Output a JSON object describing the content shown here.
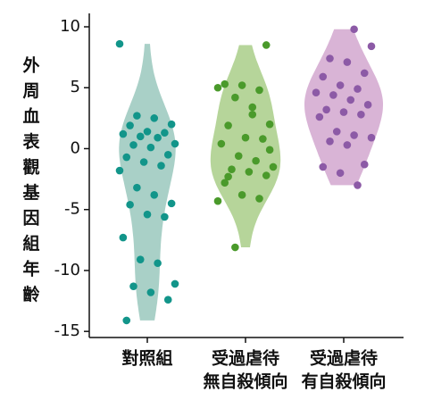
{
  "chart_data": {
    "type": "violin",
    "ylabel": [
      "外",
      "周",
      "血",
      "表",
      "觀",
      "基",
      "因",
      "組",
      "年",
      "齡"
    ],
    "categories": [
      [
        "對照組"
      ],
      [
        "受過虐待",
        "無自殺傾向"
      ],
      [
        "受過虐待",
        "有自殺傾向"
      ]
    ],
    "series": [
      {
        "violin_color": "#a9d0c7",
        "color": "#12958a",
        "values": [
          8.6,
          2.7,
          2.5,
          2.0,
          1.9,
          1.4,
          1.3,
          1.2,
          1.0,
          0.9,
          0.4,
          0.3,
          0.1,
          -0.5,
          -0.7,
          -1.1,
          -1.4,
          -1.8,
          -3.2,
          -3.8,
          -4.5,
          -4.6,
          -5.4,
          -5.6,
          -7.3,
          -9.1,
          -9.4,
          -11.1,
          -11.3,
          -11.8,
          -12.4,
          -14.1
        ]
      },
      {
        "violin_color": "#b6d59a",
        "color": "#4a9a2b",
        "values": [
          8.5,
          5.3,
          5.2,
          4.8,
          5.0,
          4.2,
          2.8,
          2.0,
          1.9,
          0.9,
          0.8,
          0.4,
          -0.6,
          -1.0,
          -1.5,
          -1.7,
          -1.9,
          -2.2,
          -2.8,
          -3.8,
          -4.1,
          -4.3,
          -8.1,
          3.4,
          -0.1,
          -2.3
        ]
      },
      {
        "violin_color": "#d9b4d6",
        "color": "#8c5aa6",
        "values": [
          9.8,
          8.4,
          7.4,
          7.1,
          6.2,
          5.9,
          5.2,
          4.9,
          4.6,
          4.4,
          4.0,
          3.6,
          3.2,
          3.0,
          2.8,
          2.6,
          1.4,
          1.1,
          0.9,
          0.6,
          0.3,
          -1.3,
          -1.5,
          -2.0,
          -3.0
        ]
      }
    ],
    "ylim": [
      -15.5,
      11.1
    ],
    "yticks": [
      10,
      5,
      0,
      -5,
      -10,
      -15
    ]
  }
}
